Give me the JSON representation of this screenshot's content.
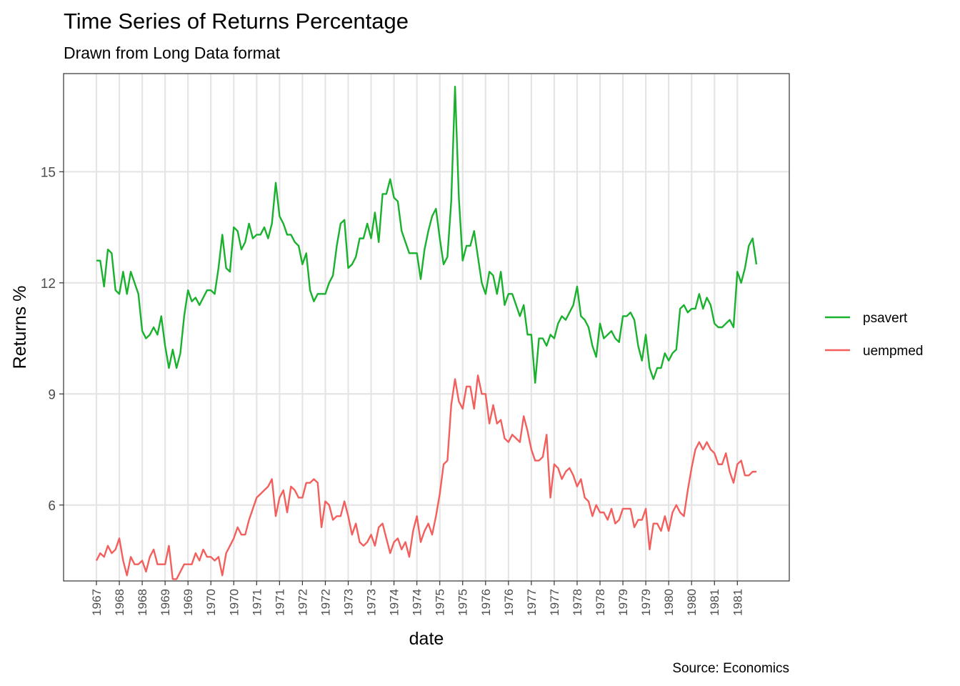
{
  "chart_data": {
    "type": "line",
    "title": "Time Series of Returns Percentage",
    "subtitle": "Drawn from Long Data format",
    "caption": "Source: Economics",
    "xlabel": "date",
    "ylabel": "Returns %",
    "y_ticks": [
      6,
      9,
      12,
      15
    ],
    "ylim": [
      3.95,
      17.65
    ],
    "x_tick_labels": [
      "1967",
      "1968",
      "1968",
      "1969",
      "1969",
      "1970",
      "1970",
      "1971",
      "1971",
      "1972",
      "1972",
      "1973",
      "1973",
      "1974",
      "1974",
      "1975",
      "1975",
      "1976",
      "1976",
      "1977",
      "1977",
      "1978",
      "1978",
      "1979",
      "1979",
      "1980",
      "1980",
      "1981",
      "1981"
    ],
    "x_tick_interval_months": 6,
    "x_start": "1967-07",
    "x_end": "1981-12",
    "grid": true,
    "legend_position": "right",
    "series": [
      {
        "name": "psavert",
        "color": "#19b12d",
        "values": [
          12.6,
          12.6,
          11.9,
          12.9,
          12.8,
          11.8,
          11.7,
          12.3,
          11.7,
          12.3,
          12.0,
          11.7,
          10.7,
          10.5,
          10.6,
          10.8,
          10.6,
          11.1,
          10.3,
          9.7,
          10.2,
          9.7,
          10.1,
          11.1,
          11.8,
          11.5,
          11.6,
          11.4,
          11.6,
          11.8,
          11.8,
          11.7,
          12.4,
          13.3,
          12.4,
          12.3,
          13.5,
          13.4,
          12.9,
          13.1,
          13.6,
          13.2,
          13.3,
          13.3,
          13.5,
          13.2,
          13.6,
          14.7,
          13.8,
          13.6,
          13.3,
          13.3,
          13.1,
          13.0,
          12.5,
          12.8,
          11.8,
          11.5,
          11.7,
          11.7,
          11.7,
          12.0,
          12.2,
          13.0,
          13.6,
          13.7,
          12.4,
          12.5,
          12.7,
          13.2,
          13.2,
          13.6,
          13.2,
          13.9,
          13.1,
          14.4,
          14.4,
          14.8,
          14.3,
          14.2,
          13.4,
          13.1,
          12.8,
          12.8,
          12.8,
          12.1,
          12.9,
          13.4,
          13.8,
          14.0,
          13.2,
          12.5,
          12.7,
          14.2,
          17.3,
          14.3,
          12.6,
          13.0,
          13.0,
          13.4,
          12.7,
          12.0,
          11.7,
          12.3,
          12.2,
          11.7,
          12.3,
          11.4,
          11.7,
          11.7,
          11.4,
          11.1,
          11.4,
          10.6,
          10.6,
          9.3,
          10.5,
          10.5,
          10.3,
          10.6,
          10.5,
          10.9,
          11.1,
          11.0,
          11.2,
          11.4,
          11.9,
          11.1,
          11.0,
          10.8,
          10.3,
          10.0,
          10.9,
          10.5,
          10.6,
          10.7,
          10.5,
          10.4,
          11.1,
          11.1,
          11.2,
          11.0,
          10.3,
          9.9,
          10.6,
          9.7,
          9.4,
          9.7,
          9.7,
          10.1,
          9.9,
          10.1,
          10.2,
          11.3,
          11.4,
          11.2,
          11.3,
          11.3,
          11.7,
          11.3,
          11.6,
          11.4,
          10.9,
          10.8,
          10.8,
          10.9,
          11.0,
          10.8,
          12.3,
          12.0,
          12.4,
          13.0,
          13.2,
          12.5
        ]
      },
      {
        "name": "uempmed",
        "color": "#f25f5c",
        "values": [
          4.5,
          4.7,
          4.6,
          4.9,
          4.7,
          4.8,
          5.1,
          4.5,
          4.1,
          4.6,
          4.4,
          4.4,
          4.5,
          4.2,
          4.6,
          4.8,
          4.4,
          4.4,
          4.4,
          4.9,
          4.0,
          4.0,
          4.2,
          4.4,
          4.4,
          4.4,
          4.7,
          4.5,
          4.8,
          4.6,
          4.6,
          4.5,
          4.6,
          4.1,
          4.7,
          4.9,
          5.1,
          5.4,
          5.2,
          5.2,
          5.6,
          5.9,
          6.2,
          6.3,
          6.4,
          6.5,
          6.7,
          5.7,
          6.2,
          6.4,
          5.8,
          6.5,
          6.4,
          6.2,
          6.2,
          6.6,
          6.6,
          6.7,
          6.6,
          5.4,
          6.1,
          6.0,
          5.6,
          5.7,
          5.7,
          6.1,
          5.7,
          5.2,
          5.5,
          5.0,
          4.9,
          5.0,
          5.2,
          4.9,
          5.4,
          5.5,
          5.1,
          4.7,
          5.0,
          5.1,
          4.8,
          5.0,
          4.6,
          5.3,
          5.7,
          5.0,
          5.3,
          5.5,
          5.2,
          5.7,
          6.3,
          7.1,
          7.2,
          8.7,
          9.4,
          8.8,
          8.6,
          9.2,
          9.2,
          8.6,
          9.5,
          9.0,
          9.0,
          8.2,
          8.7,
          8.2,
          8.3,
          7.8,
          7.7,
          7.9,
          7.8,
          7.7,
          8.4,
          8.0,
          7.5,
          7.2,
          7.2,
          7.3,
          7.9,
          6.2,
          7.1,
          7.0,
          6.7,
          6.9,
          7.0,
          6.8,
          6.5,
          6.7,
          6.2,
          6.1,
          5.7,
          6.0,
          5.8,
          5.8,
          5.6,
          5.9,
          5.5,
          5.6,
          5.9,
          5.9,
          5.9,
          5.4,
          5.6,
          5.6,
          5.9,
          4.8,
          5.5,
          5.5,
          5.3,
          5.7,
          5.3,
          5.8,
          6.0,
          5.8,
          5.7,
          6.4,
          7.0,
          7.5,
          7.7,
          7.5,
          7.7,
          7.5,
          7.4,
          7.1,
          7.1,
          7.4,
          6.9,
          6.6,
          7.1,
          7.2,
          6.8,
          6.8,
          6.9,
          6.9
        ]
      }
    ]
  }
}
